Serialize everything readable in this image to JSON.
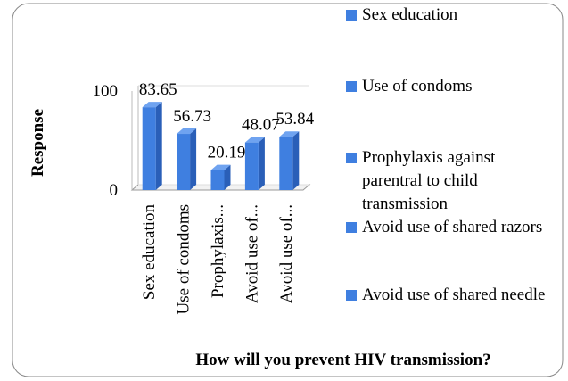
{
  "chart_data": {
    "type": "bar3d",
    "title": "How will you prevent HIV transmission?",
    "y_label": "Response",
    "categories": [
      "Sex education",
      "Use of condoms",
      "Prophylaxis against parentral to child transmission",
      "Avoid use of shared razors",
      "Avoid use of shared needle"
    ],
    "x_tick_labels": [
      "Sex education",
      "Use of condoms",
      "Prophylaxis...",
      "Avoid use of...",
      "Avoid use of..."
    ],
    "values": [
      83.65,
      56.73,
      20.19,
      48.07,
      53.84
    ],
    "color": "#3f7fe0",
    "ylim": [
      0,
      100
    ],
    "yticks": [
      0,
      100
    ]
  }
}
